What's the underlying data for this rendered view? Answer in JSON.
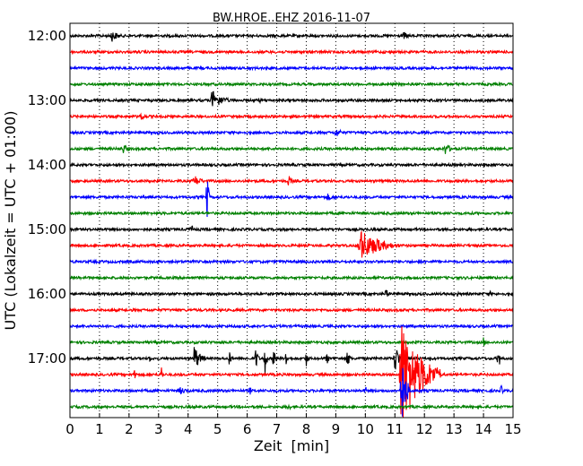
{
  "chart_data": {
    "type": "line",
    "title": "BW.HROE..EHZ 2016-11-07",
    "xlabel": "Zeit  [min]",
    "ylabel": "UTC (Lokalzeit = UTC + 01:00)",
    "xlim": [
      0,
      15
    ],
    "x_ticks": [
      0,
      1,
      2,
      3,
      4,
      5,
      6,
      7,
      8,
      9,
      10,
      11,
      12,
      13,
      14,
      15
    ],
    "y_ticks": [
      "12:00",
      "13:00",
      "14:00",
      "15:00",
      "16:00",
      "17:00"
    ],
    "grid": "vertical-dotted",
    "trace_colors": [
      "#000000",
      "#ff0000",
      "#0000ff",
      "#008000"
    ],
    "traces": [
      {
        "start": "12:00",
        "events": [
          {
            "t": 1.4,
            "amp": 0.6,
            "dur": 0.5
          },
          {
            "t": 11.3,
            "amp": 0.4,
            "dur": 0.4
          }
        ]
      },
      {
        "start": "12:15",
        "events": []
      },
      {
        "start": "12:30",
        "events": []
      },
      {
        "start": "12:45",
        "events": []
      },
      {
        "start": "13:00",
        "events": [
          {
            "t": 4.8,
            "amp": 1.0,
            "dur": 0.7
          },
          {
            "t": 6.4,
            "amp": 0.3,
            "dur": 0.2
          }
        ]
      },
      {
        "start": "13:15",
        "events": [
          {
            "t": 2.4,
            "amp": 0.6,
            "dur": 0.2
          }
        ]
      },
      {
        "start": "13:30",
        "events": [
          {
            "t": 9.0,
            "amp": 0.5,
            "dur": 0.4
          }
        ]
      },
      {
        "start": "13:45",
        "events": [
          {
            "t": 1.8,
            "amp": 0.5,
            "dur": 0.4
          },
          {
            "t": 12.7,
            "amp": 0.6,
            "dur": 0.4
          }
        ]
      },
      {
        "start": "14:00",
        "events": []
      },
      {
        "start": "14:15",
        "events": [
          {
            "t": 4.2,
            "amp": 0.6,
            "dur": 0.5
          },
          {
            "t": 7.4,
            "amp": 0.6,
            "dur": 0.2
          }
        ]
      },
      {
        "start": "14:30",
        "events": [
          {
            "t": 4.65,
            "amp": 3.2,
            "dur": 0.05
          },
          {
            "t": 8.7,
            "amp": 0.4,
            "dur": 0.5
          }
        ]
      },
      {
        "start": "14:45",
        "events": []
      },
      {
        "start": "15:00",
        "events": [
          {
            "t": 4.1,
            "amp": 0.7,
            "dur": 0.1
          }
        ]
      },
      {
        "start": "15:15",
        "events": [
          {
            "t": 9.8,
            "amp": 1.6,
            "dur": 1.3
          },
          {
            "t": 10.4,
            "amp": 1.3,
            "dur": 0.1
          }
        ]
      },
      {
        "start": "15:30",
        "events": [
          {
            "t": 11.8,
            "amp": 0.3,
            "dur": 0.3
          }
        ]
      },
      {
        "start": "15:45",
        "events": []
      },
      {
        "start": "16:00",
        "events": [
          {
            "t": 10.7,
            "amp": 0.7,
            "dur": 0.1
          },
          {
            "t": 13.1,
            "amp": 0.4,
            "dur": 0.1
          },
          {
            "t": 14.2,
            "amp": 0.4,
            "dur": 0.1
          }
        ]
      },
      {
        "start": "16:15",
        "events": []
      },
      {
        "start": "16:30",
        "events": []
      },
      {
        "start": "16:45",
        "events": [
          {
            "t": 14.0,
            "amp": 0.5,
            "dur": 0.1
          }
        ]
      },
      {
        "start": "17:00",
        "events": [
          {
            "t": 2.7,
            "amp": 0.4,
            "dur": 0.1
          },
          {
            "t": 4.2,
            "amp": 1.3,
            "dur": 0.4
          },
          {
            "t": 5.4,
            "amp": 0.8,
            "dur": 0.1
          },
          {
            "t": 6.3,
            "amp": 1.3,
            "dur": 0.1
          },
          {
            "t": 6.6,
            "amp": 1.6,
            "dur": 0.1
          },
          {
            "t": 6.9,
            "amp": 1.3,
            "dur": 0.1
          },
          {
            "t": 7.3,
            "amp": 1.0,
            "dur": 0.1
          },
          {
            "t": 8.0,
            "amp": 0.8,
            "dur": 0.1
          },
          {
            "t": 8.7,
            "amp": 0.7,
            "dur": 0.1
          },
          {
            "t": 9.4,
            "amp": 1.1,
            "dur": 0.1
          },
          {
            "t": 11.0,
            "amp": 1.5,
            "dur": 0.3
          },
          {
            "t": 12.2,
            "amp": 0.3,
            "dur": 0.1
          },
          {
            "t": 14.5,
            "amp": 1.3,
            "dur": 0.1
          }
        ]
      },
      {
        "start": "17:15",
        "events": [
          {
            "t": 2.2,
            "amp": 1.0,
            "dur": 0.05
          },
          {
            "t": 3.1,
            "amp": 1.0,
            "dur": 0.05
          },
          {
            "t": 11.2,
            "amp": 5.5,
            "dur": 1.3
          }
        ]
      },
      {
        "start": "17:30",
        "events": [
          {
            "t": 3.7,
            "amp": 0.4,
            "dur": 0.6
          },
          {
            "t": 6.1,
            "amp": 0.5,
            "dur": 0.1
          },
          {
            "t": 10.0,
            "amp": 0.5,
            "dur": 0.1
          },
          {
            "t": 11.2,
            "amp": 4.0,
            "dur": 0.3
          },
          {
            "t": 14.6,
            "amp": 0.6,
            "dur": 0.1
          }
        ]
      },
      {
        "start": "17:45",
        "events": [
          {
            "t": 7.4,
            "amp": 0.5,
            "dur": 0.1
          }
        ]
      }
    ]
  }
}
